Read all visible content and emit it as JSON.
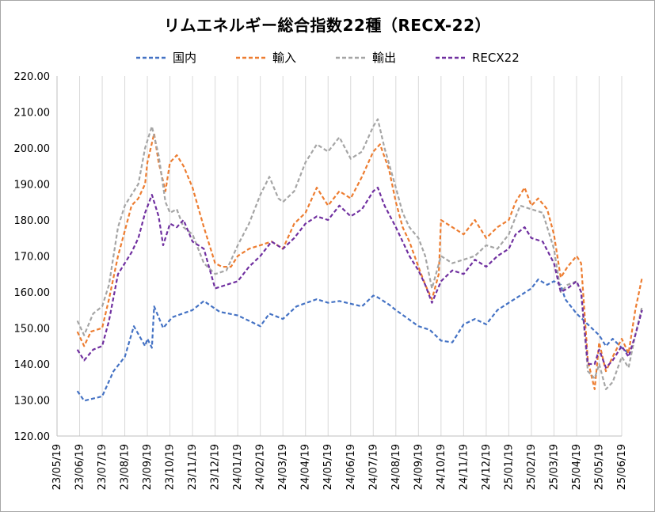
{
  "chart_data": {
    "type": "line",
    "title": "リムエネルギー総合指数22種（RECX-22）",
    "xlabel": "",
    "ylabel": "",
    "ylim": [
      120,
      220
    ],
    "y_ticks": [
      "120.00",
      "130.00",
      "140.00",
      "150.00",
      "160.00",
      "170.00",
      "180.00",
      "190.00",
      "200.00",
      "210.00",
      "220.00"
    ],
    "x_ticks": [
      "23/05/19",
      "23/06/19",
      "23/07/19",
      "23/08/19",
      "23/09/19",
      "23/10/19",
      "23/11/19",
      "23/12/19",
      "24/01/19",
      "24/02/19",
      "24/03/19",
      "24/04/19",
      "24/05/19",
      "24/06/19",
      "24/07/19",
      "24/08/19",
      "24/09/19",
      "24/10/19",
      "24/11/19",
      "24/12/19",
      "25/01/19",
      "25/02/19",
      "25/03/19",
      "25/04/19",
      "25/05/19",
      "25/06/19"
    ],
    "grid": "vertical",
    "legend_position": "top",
    "series": [
      {
        "name": "国内",
        "color": "#4472c4",
        "points": [
          [
            0.9,
            132.5
          ],
          [
            1.2,
            129.8
          ],
          [
            2.0,
            131
          ],
          [
            2.5,
            138
          ],
          [
            3.0,
            142
          ],
          [
            3.4,
            150.5
          ],
          [
            3.9,
            145
          ],
          [
            4.0,
            147
          ],
          [
            4.2,
            144.5
          ],
          [
            4.3,
            156
          ],
          [
            4.7,
            150
          ],
          [
            5.1,
            153
          ],
          [
            6.0,
            155
          ],
          [
            6.5,
            157.5
          ],
          [
            7.2,
            154.5
          ],
          [
            8.0,
            153.5
          ],
          [
            9.0,
            150.5
          ],
          [
            9.4,
            154
          ],
          [
            10.0,
            152.5
          ],
          [
            10.6,
            156
          ],
          [
            11.5,
            158
          ],
          [
            12.0,
            157
          ],
          [
            12.5,
            157.5
          ],
          [
            13.5,
            156
          ],
          [
            14.0,
            159
          ],
          [
            14.2,
            158.5
          ],
          [
            14.7,
            156.5
          ],
          [
            15.0,
            155
          ],
          [
            16.0,
            150.5
          ],
          [
            16.5,
            149.5
          ],
          [
            17.0,
            146.5
          ],
          [
            17.5,
            146
          ],
          [
            18.0,
            151
          ],
          [
            18.5,
            152.5
          ],
          [
            19.0,
            151
          ],
          [
            19.5,
            155
          ],
          [
            20.0,
            157
          ],
          [
            20.5,
            159
          ],
          [
            21.0,
            161
          ],
          [
            21.3,
            163.5
          ],
          [
            21.7,
            162
          ],
          [
            22.0,
            163
          ],
          [
            22.3,
            162
          ],
          [
            22.5,
            158
          ],
          [
            23.0,
            154
          ],
          [
            23.5,
            151
          ],
          [
            24.0,
            148
          ],
          [
            24.3,
            145
          ],
          [
            24.6,
            147
          ],
          [
            25.0,
            144.5
          ],
          [
            25.3,
            143
          ]
        ]
      },
      {
        "name": "輸入",
        "color": "#ed7d31",
        "points": [
          [
            0.9,
            149
          ],
          [
            1.2,
            145
          ],
          [
            1.5,
            149
          ],
          [
            2.0,
            150
          ],
          [
            2.3,
            158
          ],
          [
            2.7,
            170
          ],
          [
            3.0,
            177
          ],
          [
            3.3,
            184
          ],
          [
            3.6,
            186
          ],
          [
            3.9,
            190
          ],
          [
            4.0,
            196
          ],
          [
            4.3,
            204
          ],
          [
            4.5,
            196
          ],
          [
            4.8,
            188
          ],
          [
            5.0,
            196
          ],
          [
            5.3,
            198
          ],
          [
            5.6,
            195
          ],
          [
            6.0,
            189
          ],
          [
            6.5,
            178
          ],
          [
            7.0,
            168
          ],
          [
            7.3,
            167
          ],
          [
            7.7,
            167
          ],
          [
            8.0,
            170
          ],
          [
            8.5,
            172
          ],
          [
            9.0,
            173
          ],
          [
            9.5,
            174
          ],
          [
            10.0,
            172
          ],
          [
            10.5,
            179
          ],
          [
            11.0,
            182
          ],
          [
            11.5,
            189
          ],
          [
            12.0,
            184
          ],
          [
            12.5,
            188
          ],
          [
            13.0,
            186
          ],
          [
            13.5,
            192
          ],
          [
            14.0,
            199
          ],
          [
            14.3,
            201
          ],
          [
            14.7,
            194
          ],
          [
            15.0,
            185
          ],
          [
            15.3,
            178
          ],
          [
            15.6,
            174
          ],
          [
            16.0,
            167
          ],
          [
            16.3,
            162
          ],
          [
            16.6,
            158
          ],
          [
            16.9,
            165
          ],
          [
            17.0,
            180
          ],
          [
            17.5,
            178
          ],
          [
            18.0,
            176
          ],
          [
            18.5,
            180
          ],
          [
            19.0,
            175
          ],
          [
            19.5,
            178
          ],
          [
            20.0,
            180
          ],
          [
            20.3,
            185
          ],
          [
            20.7,
            189
          ],
          [
            21.0,
            184
          ],
          [
            21.3,
            186
          ],
          [
            21.7,
            183
          ],
          [
            22.0,
            176
          ],
          [
            22.3,
            164
          ],
          [
            22.6,
            167
          ],
          [
            23.0,
            170
          ],
          [
            23.2,
            168
          ],
          [
            23.5,
            141
          ],
          [
            23.8,
            133
          ],
          [
            24.0,
            146
          ],
          [
            24.3,
            138
          ],
          [
            24.6,
            142
          ],
          [
            25.0,
            147
          ],
          [
            25.3,
            143
          ],
          [
            25.6,
            155
          ],
          [
            25.9,
            164
          ]
        ]
      },
      {
        "name": "輸出",
        "color": "#a5a5a5",
        "points": [
          [
            0.9,
            152
          ],
          [
            1.2,
            148
          ],
          [
            1.6,
            154
          ],
          [
            2.0,
            156
          ],
          [
            2.3,
            162
          ],
          [
            2.7,
            178
          ],
          [
            3.0,
            184
          ],
          [
            3.3,
            187
          ],
          [
            3.6,
            190
          ],
          [
            3.9,
            200
          ],
          [
            4.2,
            206
          ],
          [
            4.5,
            198
          ],
          [
            4.8,
            185
          ],
          [
            5.0,
            182
          ],
          [
            5.3,
            183
          ],
          [
            5.6,
            178
          ],
          [
            6.0,
            176
          ],
          [
            6.5,
            168
          ],
          [
            7.0,
            165
          ],
          [
            7.5,
            166
          ],
          [
            8.0,
            173
          ],
          [
            8.5,
            179
          ],
          [
            9.0,
            187
          ],
          [
            9.4,
            192
          ],
          [
            9.8,
            186
          ],
          [
            10.0,
            185
          ],
          [
            10.5,
            188
          ],
          [
            11.0,
            196
          ],
          [
            11.5,
            201
          ],
          [
            12.0,
            199
          ],
          [
            12.5,
            203
          ],
          [
            13.0,
            197
          ],
          [
            13.5,
            199
          ],
          [
            14.0,
            206
          ],
          [
            14.2,
            208
          ],
          [
            14.5,
            200
          ],
          [
            15.0,
            189
          ],
          [
            15.3,
            182
          ],
          [
            15.6,
            178
          ],
          [
            16.0,
            175
          ],
          [
            16.3,
            170
          ],
          [
            16.6,
            161
          ],
          [
            17.0,
            170
          ],
          [
            17.5,
            168
          ],
          [
            18.0,
            169
          ],
          [
            18.5,
            170
          ],
          [
            19.0,
            173
          ],
          [
            19.5,
            172
          ],
          [
            20.0,
            176
          ],
          [
            20.5,
            184
          ],
          [
            21.0,
            183
          ],
          [
            21.5,
            182
          ],
          [
            22.0,
            172
          ],
          [
            22.3,
            160
          ],
          [
            22.6,
            162
          ],
          [
            23.0,
            163
          ],
          [
            23.2,
            160
          ],
          [
            23.5,
            138
          ],
          [
            23.8,
            136
          ],
          [
            24.0,
            140
          ],
          [
            24.3,
            133
          ],
          [
            24.6,
            135
          ],
          [
            25.0,
            142
          ],
          [
            25.3,
            139
          ],
          [
            25.6,
            148
          ],
          [
            25.9,
            156
          ]
        ]
      },
      {
        "name": "RECX22",
        "color": "#7030a0",
        "points": [
          [
            0.9,
            144
          ],
          [
            1.2,
            141
          ],
          [
            1.6,
            144
          ],
          [
            2.0,
            145
          ],
          [
            2.3,
            152
          ],
          [
            2.7,
            165
          ],
          [
            3.0,
            168
          ],
          [
            3.3,
            171
          ],
          [
            3.6,
            175
          ],
          [
            3.9,
            182
          ],
          [
            4.2,
            187
          ],
          [
            4.5,
            181
          ],
          [
            4.7,
            173
          ],
          [
            5.0,
            179
          ],
          [
            5.3,
            178
          ],
          [
            5.6,
            180
          ],
          [
            6.0,
            174
          ],
          [
            6.5,
            172
          ],
          [
            7.0,
            161
          ],
          [
            7.5,
            162
          ],
          [
            8.0,
            163
          ],
          [
            8.5,
            167
          ],
          [
            9.0,
            170
          ],
          [
            9.5,
            174
          ],
          [
            10.0,
            172
          ],
          [
            10.5,
            175
          ],
          [
            11.0,
            179
          ],
          [
            11.5,
            181
          ],
          [
            12.0,
            180
          ],
          [
            12.5,
            184
          ],
          [
            13.0,
            181
          ],
          [
            13.5,
            183
          ],
          [
            14.0,
            188
          ],
          [
            14.2,
            189
          ],
          [
            14.5,
            184
          ],
          [
            15.0,
            178
          ],
          [
            15.3,
            174
          ],
          [
            15.6,
            170
          ],
          [
            16.0,
            166
          ],
          [
            16.3,
            162
          ],
          [
            16.6,
            157
          ],
          [
            17.0,
            163
          ],
          [
            17.5,
            166
          ],
          [
            18.0,
            165
          ],
          [
            18.5,
            169
          ],
          [
            19.0,
            167
          ],
          [
            19.5,
            170
          ],
          [
            20.0,
            172
          ],
          [
            20.3,
            176
          ],
          [
            20.7,
            178
          ],
          [
            21.0,
            175
          ],
          [
            21.5,
            174
          ],
          [
            22.0,
            168
          ],
          [
            22.3,
            160
          ],
          [
            22.6,
            161
          ],
          [
            23.0,
            163
          ],
          [
            23.2,
            160
          ],
          [
            23.5,
            140
          ],
          [
            23.8,
            140
          ],
          [
            24.0,
            144
          ],
          [
            24.3,
            139
          ],
          [
            24.6,
            141
          ],
          [
            25.0,
            145
          ],
          [
            25.3,
            142
          ],
          [
            25.6,
            148
          ],
          [
            25.9,
            155
          ]
        ]
      }
    ]
  }
}
